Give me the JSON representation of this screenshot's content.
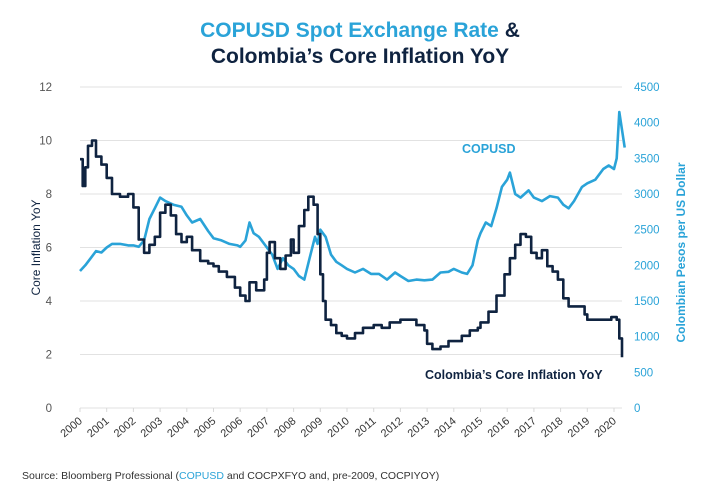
{
  "chart_data": {
    "type": "line",
    "title_part1": "COPUSD Spot Exchange Rate",
    "title_amp": "&",
    "title_part2": "Colombia’s Core Inflation YoY",
    "left_axis": {
      "label": "Core Inflation YoY",
      "range": [
        0,
        12
      ],
      "ticks": [
        "0",
        "2",
        "4",
        "6",
        "8",
        "10",
        "12"
      ],
      "color": "#0f2340"
    },
    "right_axis": {
      "label": "Colombian Pesos per US Dollar",
      "range": [
        0,
        4500
      ],
      "ticks": [
        "0",
        "500",
        "1000",
        "1500",
        "2000",
        "2500",
        "3000",
        "3500",
        "4000",
        "4500"
      ],
      "color": "#2aa3d8"
    },
    "x_axis": {
      "range": [
        2000,
        2020.4
      ],
      "ticks": [
        "2000",
        "2001",
        "2002",
        "2003",
        "2004",
        "2005",
        "2006",
        "2007",
        "2008",
        "2009",
        "2010",
        "2011",
        "2012",
        "2013",
        "2014",
        "2015",
        "2016",
        "2017",
        "2018",
        "2019",
        "2020"
      ]
    },
    "grid": true,
    "series": [
      {
        "name": "Colombia’s Core Inflation YoY",
        "axis": "left",
        "color": "#0f2340",
        "label": "Colombia’s Core Inflation YoY",
        "points": [
          [
            2000.0,
            9.3
          ],
          [
            2000.1,
            8.3
          ],
          [
            2000.2,
            9.0
          ],
          [
            2000.3,
            9.8
          ],
          [
            2000.45,
            10.0
          ],
          [
            2000.6,
            9.4
          ],
          [
            2000.8,
            9.1
          ],
          [
            2001.0,
            8.6
          ],
          [
            2001.2,
            8.0
          ],
          [
            2001.5,
            7.9
          ],
          [
            2001.8,
            8.0
          ],
          [
            2002.0,
            7.5
          ],
          [
            2002.2,
            6.3
          ],
          [
            2002.4,
            5.8
          ],
          [
            2002.6,
            6.1
          ],
          [
            2002.8,
            6.4
          ],
          [
            2003.0,
            7.3
          ],
          [
            2003.2,
            7.6
          ],
          [
            2003.4,
            7.2
          ],
          [
            2003.6,
            6.5
          ],
          [
            2003.8,
            6.2
          ],
          [
            2004.0,
            6.4
          ],
          [
            2004.2,
            5.9
          ],
          [
            2004.5,
            5.5
          ],
          [
            2004.8,
            5.4
          ],
          [
            2005.0,
            5.3
          ],
          [
            2005.2,
            5.1
          ],
          [
            2005.5,
            4.9
          ],
          [
            2005.8,
            4.5
          ],
          [
            2006.0,
            4.2
          ],
          [
            2006.2,
            4.0
          ],
          [
            2006.35,
            4.7
          ],
          [
            2006.6,
            4.4
          ],
          [
            2006.9,
            4.8
          ],
          [
            2007.0,
            5.8
          ],
          [
            2007.1,
            6.2
          ],
          [
            2007.3,
            5.6
          ],
          [
            2007.5,
            5.2
          ],
          [
            2007.7,
            5.7
          ],
          [
            2007.9,
            6.3
          ],
          [
            2008.0,
            5.8
          ],
          [
            2008.2,
            6.8
          ],
          [
            2008.4,
            7.4
          ],
          [
            2008.55,
            7.9
          ],
          [
            2008.75,
            7.6
          ],
          [
            2008.9,
            6.5
          ],
          [
            2009.0,
            5.0
          ],
          [
            2009.1,
            4.0
          ],
          [
            2009.2,
            3.3
          ],
          [
            2009.4,
            3.1
          ],
          [
            2009.6,
            2.8
          ],
          [
            2009.8,
            2.7
          ],
          [
            2010.0,
            2.6
          ],
          [
            2010.3,
            2.8
          ],
          [
            2010.6,
            3.0
          ],
          [
            2011.0,
            3.1
          ],
          [
            2011.3,
            3.0
          ],
          [
            2011.6,
            3.2
          ],
          [
            2012.0,
            3.3
          ],
          [
            2012.3,
            3.3
          ],
          [
            2012.6,
            3.1
          ],
          [
            2012.9,
            2.9
          ],
          [
            2013.0,
            2.4
          ],
          [
            2013.2,
            2.2
          ],
          [
            2013.5,
            2.3
          ],
          [
            2013.8,
            2.5
          ],
          [
            2014.0,
            2.5
          ],
          [
            2014.3,
            2.7
          ],
          [
            2014.6,
            2.9
          ],
          [
            2014.9,
            3.0
          ],
          [
            2015.0,
            3.2
          ],
          [
            2015.3,
            3.6
          ],
          [
            2015.6,
            4.2
          ],
          [
            2015.9,
            5.0
          ],
          [
            2016.1,
            5.6
          ],
          [
            2016.3,
            6.1
          ],
          [
            2016.5,
            6.5
          ],
          [
            2016.7,
            6.4
          ],
          [
            2016.9,
            5.8
          ],
          [
            2017.1,
            5.6
          ],
          [
            2017.3,
            5.9
          ],
          [
            2017.5,
            5.3
          ],
          [
            2017.7,
            5.1
          ],
          [
            2017.9,
            4.8
          ],
          [
            2018.1,
            4.1
          ],
          [
            2018.3,
            3.8
          ],
          [
            2018.6,
            3.8
          ],
          [
            2018.9,
            3.5
          ],
          [
            2019.0,
            3.3
          ],
          [
            2019.3,
            3.3
          ],
          [
            2019.6,
            3.3
          ],
          [
            2019.9,
            3.4
          ],
          [
            2020.1,
            3.3
          ],
          [
            2020.2,
            2.6
          ],
          [
            2020.3,
            1.9
          ]
        ]
      },
      {
        "name": "COPUSD",
        "axis": "right",
        "color": "#2aa3d8",
        "label": "COPUSD",
        "points": [
          [
            2000.0,
            1920
          ],
          [
            2000.2,
            2000
          ],
          [
            2000.4,
            2100
          ],
          [
            2000.6,
            2200
          ],
          [
            2000.8,
            2180
          ],
          [
            2001.0,
            2250
          ],
          [
            2001.2,
            2300
          ],
          [
            2001.5,
            2300
          ],
          [
            2001.8,
            2280
          ],
          [
            2002.0,
            2280
          ],
          [
            2002.2,
            2260
          ],
          [
            2002.4,
            2350
          ],
          [
            2002.6,
            2650
          ],
          [
            2002.8,
            2800
          ],
          [
            2003.0,
            2950
          ],
          [
            2003.2,
            2900
          ],
          [
            2003.5,
            2850
          ],
          [
            2003.8,
            2820
          ],
          [
            2004.0,
            2700
          ],
          [
            2004.2,
            2600
          ],
          [
            2004.5,
            2650
          ],
          [
            2004.8,
            2480
          ],
          [
            2005.0,
            2380
          ],
          [
            2005.3,
            2350
          ],
          [
            2005.6,
            2300
          ],
          [
            2005.9,
            2280
          ],
          [
            2006.0,
            2260
          ],
          [
            2006.2,
            2350
          ],
          [
            2006.35,
            2600
          ],
          [
            2006.5,
            2450
          ],
          [
            2006.7,
            2400
          ],
          [
            2007.0,
            2250
          ],
          [
            2007.2,
            2150
          ],
          [
            2007.4,
            1950
          ],
          [
            2007.6,
            2100
          ],
          [
            2007.8,
            2000
          ],
          [
            2008.0,
            1950
          ],
          [
            2008.2,
            1850
          ],
          [
            2008.4,
            1800
          ],
          [
            2008.6,
            2100
          ],
          [
            2008.8,
            2400
          ],
          [
            2008.9,
            2300
          ],
          [
            2009.0,
            2500
          ],
          [
            2009.2,
            2400
          ],
          [
            2009.4,
            2150
          ],
          [
            2009.6,
            2050
          ],
          [
            2009.8,
            2000
          ],
          [
            2010.0,
            1950
          ],
          [
            2010.3,
            1900
          ],
          [
            2010.6,
            1950
          ],
          [
            2010.9,
            1880
          ],
          [
            2011.2,
            1880
          ],
          [
            2011.5,
            1800
          ],
          [
            2011.8,
            1900
          ],
          [
            2012.0,
            1850
          ],
          [
            2012.3,
            1780
          ],
          [
            2012.6,
            1800
          ],
          [
            2012.9,
            1790
          ],
          [
            2013.2,
            1800
          ],
          [
            2013.5,
            1900
          ],
          [
            2013.8,
            1910
          ],
          [
            2014.0,
            1950
          ],
          [
            2014.3,
            1900
          ],
          [
            2014.5,
            1880
          ],
          [
            2014.7,
            2000
          ],
          [
            2014.9,
            2350
          ],
          [
            2015.0,
            2450
          ],
          [
            2015.2,
            2600
          ],
          [
            2015.4,
            2550
          ],
          [
            2015.6,
            2800
          ],
          [
            2015.8,
            3100
          ],
          [
            2016.0,
            3200
          ],
          [
            2016.1,
            3300
          ],
          [
            2016.3,
            3000
          ],
          [
            2016.5,
            2950
          ],
          [
            2016.8,
            3050
          ],
          [
            2017.0,
            2950
          ],
          [
            2017.3,
            2900
          ],
          [
            2017.6,
            2970
          ],
          [
            2017.9,
            2950
          ],
          [
            2018.1,
            2850
          ],
          [
            2018.3,
            2800
          ],
          [
            2018.5,
            2900
          ],
          [
            2018.8,
            3100
          ],
          [
            2019.0,
            3150
          ],
          [
            2019.3,
            3200
          ],
          [
            2019.6,
            3350
          ],
          [
            2019.8,
            3400
          ],
          [
            2020.0,
            3350
          ],
          [
            2020.1,
            3500
          ],
          [
            2020.2,
            4150
          ],
          [
            2020.3,
            3900
          ],
          [
            2020.4,
            3650
          ]
        ]
      }
    ],
    "annotations": [
      {
        "text": "COPUSD",
        "series": "COPUSD",
        "near": [
          2015.3,
          3650
        ]
      },
      {
        "text": "Colombia’s Core Inflation YoY",
        "series": "Colombia’s Core Inflation YoY",
        "near": [
          2015.2,
          1.3
        ]
      }
    ],
    "source": {
      "prefix": "Source: Bloomberg Professional (",
      "highlight": "COPUSD",
      "suffix": " and COCPXFYO and, pre-2009, COCPIYOY)"
    }
  }
}
